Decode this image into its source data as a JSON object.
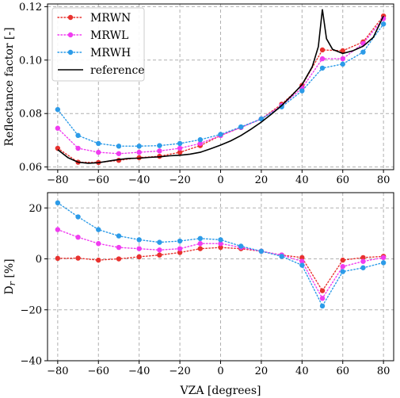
{
  "chart_data": [
    {
      "type": "line",
      "ylabel": "Reflectance factor [-]",
      "xlabel": "",
      "xlim": [
        -85,
        85
      ],
      "ylim": [
        0.059,
        0.121
      ],
      "xticks": [
        -80,
        -60,
        -40,
        -20,
        0,
        20,
        40,
        60,
        80
      ],
      "yticks": [
        0.06,
        0.08,
        0.1,
        0.12
      ],
      "ytick_labels": [
        "0.06",
        "0.08",
        "0.10",
        "0.12"
      ],
      "grid": true,
      "legend_position": "top-left",
      "x": [
        -80,
        -70,
        -60,
        -50,
        -40,
        -30,
        -20,
        -10,
        0,
        10,
        20,
        30,
        40,
        50,
        60,
        70,
        80
      ],
      "series": [
        {
          "name": "MRWN",
          "color": "#e8322f",
          "style": "dotted-markers",
          "values": [
            0.067,
            0.0618,
            0.0617,
            0.0625,
            0.0635,
            0.064,
            0.0655,
            0.068,
            0.0718,
            0.0748,
            0.078,
            0.0835,
            0.0905,
            0.1038,
            0.1035,
            0.1068,
            0.1165
          ]
        },
        {
          "name": "MRWL",
          "color": "#f03cf0",
          "style": "dotted-markers",
          "values": [
            0.0745,
            0.067,
            0.0655,
            0.065,
            0.0655,
            0.066,
            0.067,
            0.0688,
            0.0718,
            0.0748,
            0.078,
            0.083,
            0.0895,
            0.1005,
            0.1005,
            0.1062,
            0.1155
          ]
        },
        {
          "name": "MRWH",
          "color": "#2c9be8",
          "style": "dotted-markers",
          "values": [
            0.0815,
            0.0718,
            0.0688,
            0.0678,
            0.0678,
            0.068,
            0.0688,
            0.0702,
            0.0722,
            0.075,
            0.078,
            0.0825,
            0.0885,
            0.097,
            0.0985,
            0.103,
            0.1135
          ]
        },
        {
          "name": "reference",
          "color": "#000000",
          "style": "solid",
          "x": [
            -80,
            -75,
            -70,
            -65,
            -60,
            -55,
            -50,
            -45,
            -40,
            -35,
            -30,
            -25,
            -20,
            -15,
            -10,
            -5,
            0,
            5,
            10,
            15,
            20,
            25,
            30,
            35,
            40,
            45,
            48,
            50,
            52,
            55,
            60,
            65,
            70,
            75,
            80
          ],
          "values": [
            0.0665,
            0.0635,
            0.0618,
            0.0614,
            0.0616,
            0.0622,
            0.0628,
            0.0632,
            0.0633,
            0.0636,
            0.0638,
            0.0642,
            0.0644,
            0.0648,
            0.0655,
            0.0668,
            0.0682,
            0.0698,
            0.0718,
            0.0742,
            0.0768,
            0.0798,
            0.083,
            0.0868,
            0.0908,
            0.0975,
            0.105,
            0.119,
            0.108,
            0.104,
            0.1025,
            0.1035,
            0.1052,
            0.1085,
            0.1165
          ]
        }
      ]
    },
    {
      "type": "line",
      "ylabel": "D_r [%]",
      "xlabel": "VZA [degrees]",
      "xlim": [
        -85,
        85
      ],
      "ylim": [
        -40,
        26
      ],
      "xticks": [
        -80,
        -60,
        -40,
        -20,
        0,
        20,
        40,
        60,
        80
      ],
      "yticks": [
        -40,
        -20,
        0,
        20
      ],
      "ytick_labels": [
        "−40",
        "−20",
        "0",
        "20"
      ],
      "grid": true,
      "x": [
        -80,
        -70,
        -60,
        -50,
        -40,
        -30,
        -20,
        -10,
        0,
        10,
        20,
        30,
        40,
        50,
        60,
        70,
        80
      ],
      "series": [
        {
          "name": "MRWN",
          "color": "#e8322f",
          "values": [
            0.2,
            0.3,
            -0.5,
            0.0,
            0.8,
            1.5,
            2.5,
            4.0,
            4.5,
            4.0,
            3.0,
            1.5,
            0.5,
            -12.5,
            -0.5,
            0.5,
            1.0
          ]
        },
        {
          "name": "MRWL",
          "color": "#f03cf0",
          "values": [
            11.5,
            8.5,
            6.0,
            4.5,
            4.0,
            3.5,
            4.0,
            6.0,
            6.0,
            4.5,
            3.0,
            1.5,
            -1.0,
            -15.5,
            -3.0,
            -1.0,
            0.5
          ]
        },
        {
          "name": "MRWH",
          "color": "#2c9be8",
          "values": [
            22.0,
            16.5,
            11.5,
            9.0,
            7.5,
            6.5,
            7.0,
            8.0,
            7.5,
            5.0,
            3.0,
            1.0,
            -2.5,
            -18.5,
            -5.0,
            -3.5,
            -1.5
          ]
        }
      ]
    }
  ]
}
